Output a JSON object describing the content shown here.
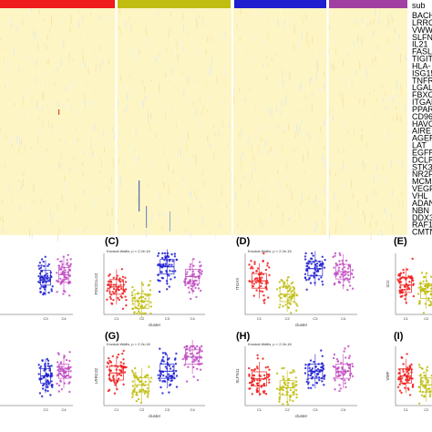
{
  "heatmap": {
    "annotation_header": "sub",
    "cluster_colors": [
      "#ee1c1c",
      "#c0bd10",
      "#1f1fd0",
      "#a23fa2"
    ],
    "genes": [
      "BACH",
      "LRRC",
      "VWW",
      "SLFN",
      "IL21",
      "FASL",
      "TIGIT",
      "HLA-",
      "ISG15",
      "TNFR",
      "LGAL",
      "FBXC",
      "ITGAE",
      "PPAR",
      "CD96",
      "HAVC",
      "AIRE",
      "AGER",
      "LAT",
      "EGFR",
      "DCLR",
      "STK3",
      "NR2F",
      "MCM",
      "VEGF",
      "VHL",
      "ADAN",
      "NBN",
      "DDX3",
      "RAF1",
      "CMTN"
    ]
  },
  "panels": [
    {
      "label": "",
      "stat": "",
      "ylabel": "",
      "xlabel": "",
      "categories": [
        "",
        "",
        "C3",
        "C4"
      ],
      "colors": [
        "#ee1c1c",
        "#c0bd10",
        "#1f1fd0",
        "#c24fc2"
      ]
    },
    {
      "label": "(C)",
      "stat": "Kruskal-Wallis, p < 2.2e-16",
      "ylabel": "PDCD1LG2",
      "xlabel": "cluster",
      "categories": [
        "C1",
        "C2",
        "C3",
        "C4"
      ],
      "colors": [
        "#ee1c1c",
        "#c0bd10",
        "#1f1fd0",
        "#c24fc2"
      ]
    },
    {
      "label": "(D)",
      "stat": "Kruskal-Wallis, p < 2.2e-16",
      "ylabel": "ITGAX",
      "xlabel": "cluster",
      "categories": [
        "C1",
        "C2",
        "C3",
        "C4"
      ],
      "colors": [
        "#ee1c1c",
        "#c0bd10",
        "#1f1fd0",
        "#c24fc2"
      ]
    },
    {
      "label": "(E)",
      "stat": "",
      "ylabel": "ICO",
      "xlabel": "",
      "categories": [
        "C1",
        "C2"
      ],
      "colors": [
        "#ee1c1c",
        "#c0bd10"
      ]
    },
    {
      "label": "",
      "stat": "",
      "ylabel": "",
      "xlabel": "",
      "categories": [
        "",
        "",
        "C3",
        "C4"
      ],
      "colors": [
        "#ee1c1c",
        "#c0bd10",
        "#1f1fd0",
        "#c24fc2"
      ]
    },
    {
      "label": "(G)",
      "stat": "Kruskal-Wallis, p < 2.2e-16",
      "ylabel": "LRRC32",
      "xlabel": "cluster",
      "categories": [
        "C1",
        "C2",
        "C3",
        "C4"
      ],
      "colors": [
        "#ee1c1c",
        "#c0bd10",
        "#1f1fd0",
        "#c24fc2"
      ]
    },
    {
      "label": "(H)",
      "stat": "Kruskal-Wallis, p < 2.2e-16",
      "ylabel": "SLFN11",
      "xlabel": "cluster",
      "categories": [
        "C1",
        "C2",
        "C3",
        "C4"
      ],
      "colors": [
        "#ee1c1c",
        "#c0bd10",
        "#1f1fd0",
        "#c24fc2"
      ]
    },
    {
      "label": "(I)",
      "stat": "",
      "ylabel": "VWF",
      "xlabel": "",
      "categories": [
        "C1",
        "C2"
      ],
      "colors": [
        "#ee1c1c",
        "#c0bd10"
      ]
    }
  ],
  "chart_data": {
    "type": "heatmap+boxplot",
    "series_groups": [
      "C1",
      "C2",
      "C3",
      "C4"
    ],
    "box_medians": [
      {
        "panel": "",
        "values": [
          null,
          null,
          0.6,
          0.65
        ]
      },
      {
        "panel": "(C)",
        "values": [
          0.45,
          0.22,
          0.78,
          0.62
        ]
      },
      {
        "panel": "(D)",
        "values": [
          0.55,
          0.33,
          0.75,
          0.7
        ]
      },
      {
        "panel": "(E)",
        "values": [
          0.48,
          0.38
        ]
      },
      {
        "panel": "",
        "values": [
          null,
          null,
          0.5,
          0.58
        ]
      },
      {
        "panel": "(G)",
        "values": [
          0.55,
          0.35,
          0.58,
          0.82
        ]
      },
      {
        "panel": "(H)",
        "values": [
          0.45,
          0.3,
          0.58,
          0.58
        ]
      },
      {
        "panel": "(I)",
        "values": [
          0.5,
          0.35
        ]
      }
    ]
  }
}
